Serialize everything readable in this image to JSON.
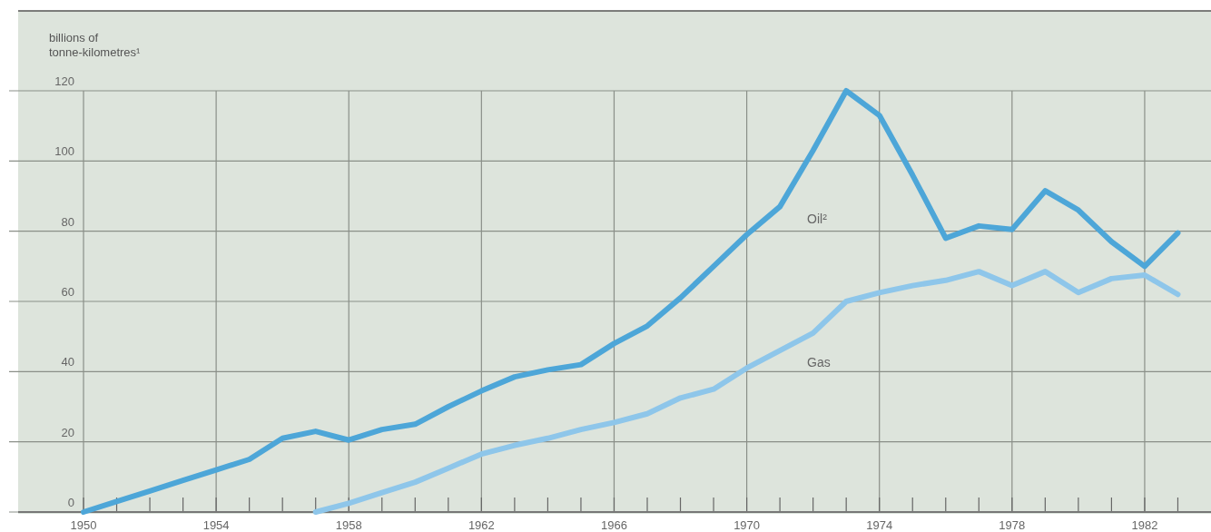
{
  "chart_data": {
    "type": "line",
    "ylabel": "billions of tonne-kilometres¹",
    "x": [
      1950,
      1951,
      1952,
      1953,
      1954,
      1955,
      1956,
      1957,
      1958,
      1959,
      1960,
      1961,
      1962,
      1963,
      1964,
      1965,
      1966,
      1967,
      1968,
      1969,
      1970,
      1971,
      1972,
      1973,
      1974,
      1975,
      1976,
      1977,
      1978,
      1979,
      1980,
      1981,
      1982,
      1983
    ],
    "series": [
      {
        "name": "Oil²",
        "color": "#4da6d8",
        "values": [
          0,
          3,
          6,
          9,
          12,
          15,
          21,
          23,
          20.5,
          23.5,
          25,
          30,
          34.5,
          38.5,
          40.5,
          42,
          48,
          53,
          61,
          70,
          79,
          87,
          103,
          120,
          113,
          96,
          78,
          81.5,
          80.5,
          91.5,
          86,
          77,
          70,
          79.5
        ]
      },
      {
        "name": "Gas",
        "color": "#8ec6ea",
        "values": [
          null,
          null,
          null,
          null,
          null,
          null,
          null,
          0,
          2.5,
          5.5,
          8.5,
          12.5,
          16.5,
          19,
          21,
          23.5,
          25.5,
          28,
          32.5,
          35,
          41,
          46,
          51,
          60,
          62.5,
          64.5,
          66,
          68.5,
          64.5,
          68.5,
          62.5,
          66.5,
          67.5,
          62
        ]
      }
    ],
    "xlim": [
      1950,
      1984
    ],
    "xticks": [
      1950,
      {
        "value": 1951,
        "label": null
      },
      {
        "value": 1952,
        "label": null
      },
      {
        "value": 1953,
        "label": null
      },
      1954,
      {
        "value": 1955,
        "label": null
      },
      {
        "value": 1956,
        "label": null
      },
      {
        "value": 1957,
        "label": null
      },
      1958,
      {
        "value": 1959,
        "label": null
      },
      {
        "value": 1960,
        "label": null
      },
      {
        "value": 1961,
        "label": null
      },
      1962,
      {
        "value": 1963,
        "label": null
      },
      {
        "value": 1964,
        "label": null
      },
      {
        "value": 1965,
        "label": null
      },
      1966,
      {
        "value": 1967,
        "label": null
      },
      {
        "value": 1968,
        "label": null
      },
      {
        "value": 1969,
        "label": null
      },
      1970,
      {
        "value": 1971,
        "label": null
      },
      {
        "value": 1972,
        "label": null
      },
      {
        "value": 1973,
        "label": null
      },
      1974,
      {
        "value": 1975,
        "label": null
      },
      {
        "value": 1976,
        "label": null
      },
      {
        "value": 1977,
        "label": null
      },
      1978,
      {
        "value": 1979,
        "label": null
      },
      {
        "value": 1980,
        "label": null
      },
      {
        "value": 1981,
        "label": null
      },
      1982,
      {
        "value": 1983,
        "label": null
      }
    ],
    "ylim": [
      0,
      120
    ],
    "yticks": [
      0,
      20,
      40,
      60,
      80,
      100,
      120
    ],
    "grid": true,
    "marker": "none",
    "line_style": "solid"
  }
}
